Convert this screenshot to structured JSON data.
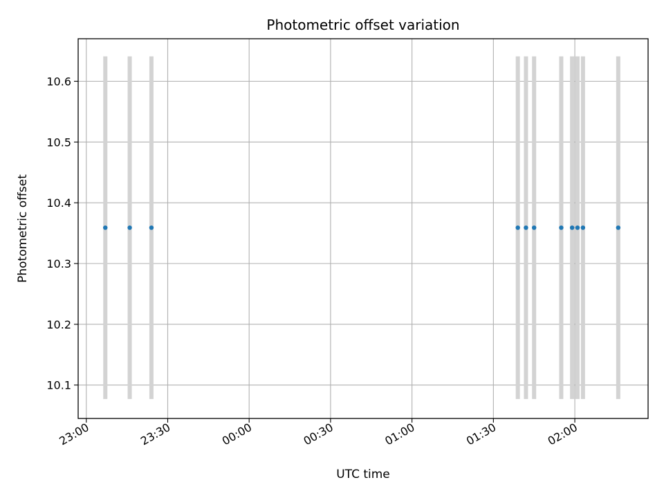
{
  "chart_data": {
    "type": "scatter",
    "title": "Photometric offset variation",
    "xlabel": "UTC time",
    "ylabel": "Photometric offset",
    "x_unit": "UTC time",
    "xlim": [
      "22:57:00",
      "02:27:00"
    ],
    "ylim": [
      10.045,
      10.67
    ],
    "x_ticks": [
      "23:00",
      "23:30",
      "00:00",
      "00:30",
      "01:00",
      "01:30",
      "02:00"
    ],
    "x_tick_values": [
      "23:00:00",
      "23:30:00",
      "00:00:00",
      "00:30:00",
      "01:00:00",
      "01:30:00",
      "02:00:00"
    ],
    "y_ticks": [
      "10.1",
      "10.2",
      "10.3",
      "10.4",
      "10.5",
      "10.6"
    ],
    "y_tick_values": [
      10.1,
      10.2,
      10.3,
      10.4,
      10.5,
      10.6
    ],
    "grid": true,
    "series": [
      {
        "color": "#1f77b4",
        "points": [
          {
            "x": "23:07:00",
            "y": 10.359
          },
          {
            "x": "23:16:00",
            "y": 10.359
          },
          {
            "x": "23:24:00",
            "y": 10.359
          },
          {
            "x": "01:39:00",
            "y": 10.359
          },
          {
            "x": "01:42:00",
            "y": 10.359
          },
          {
            "x": "01:45:00",
            "y": 10.359
          },
          {
            "x": "01:55:00",
            "y": 10.359
          },
          {
            "x": "01:59:00",
            "y": 10.359
          },
          {
            "x": "02:01:00",
            "y": 10.359
          },
          {
            "x": "02:03:00",
            "y": 10.359
          },
          {
            "x": "02:16:00",
            "y": 10.359
          }
        ]
      }
    ],
    "error_bars": {
      "color": "#d3d3d3",
      "low": 10.077,
      "high": 10.641,
      "x": [
        "23:07:00",
        "23:16:00",
        "23:24:00",
        "01:39:00",
        "01:42:00",
        "01:45:00",
        "01:55:00",
        "01:59:00",
        "02:01:00",
        "02:03:00",
        "02:16:00"
      ]
    }
  }
}
